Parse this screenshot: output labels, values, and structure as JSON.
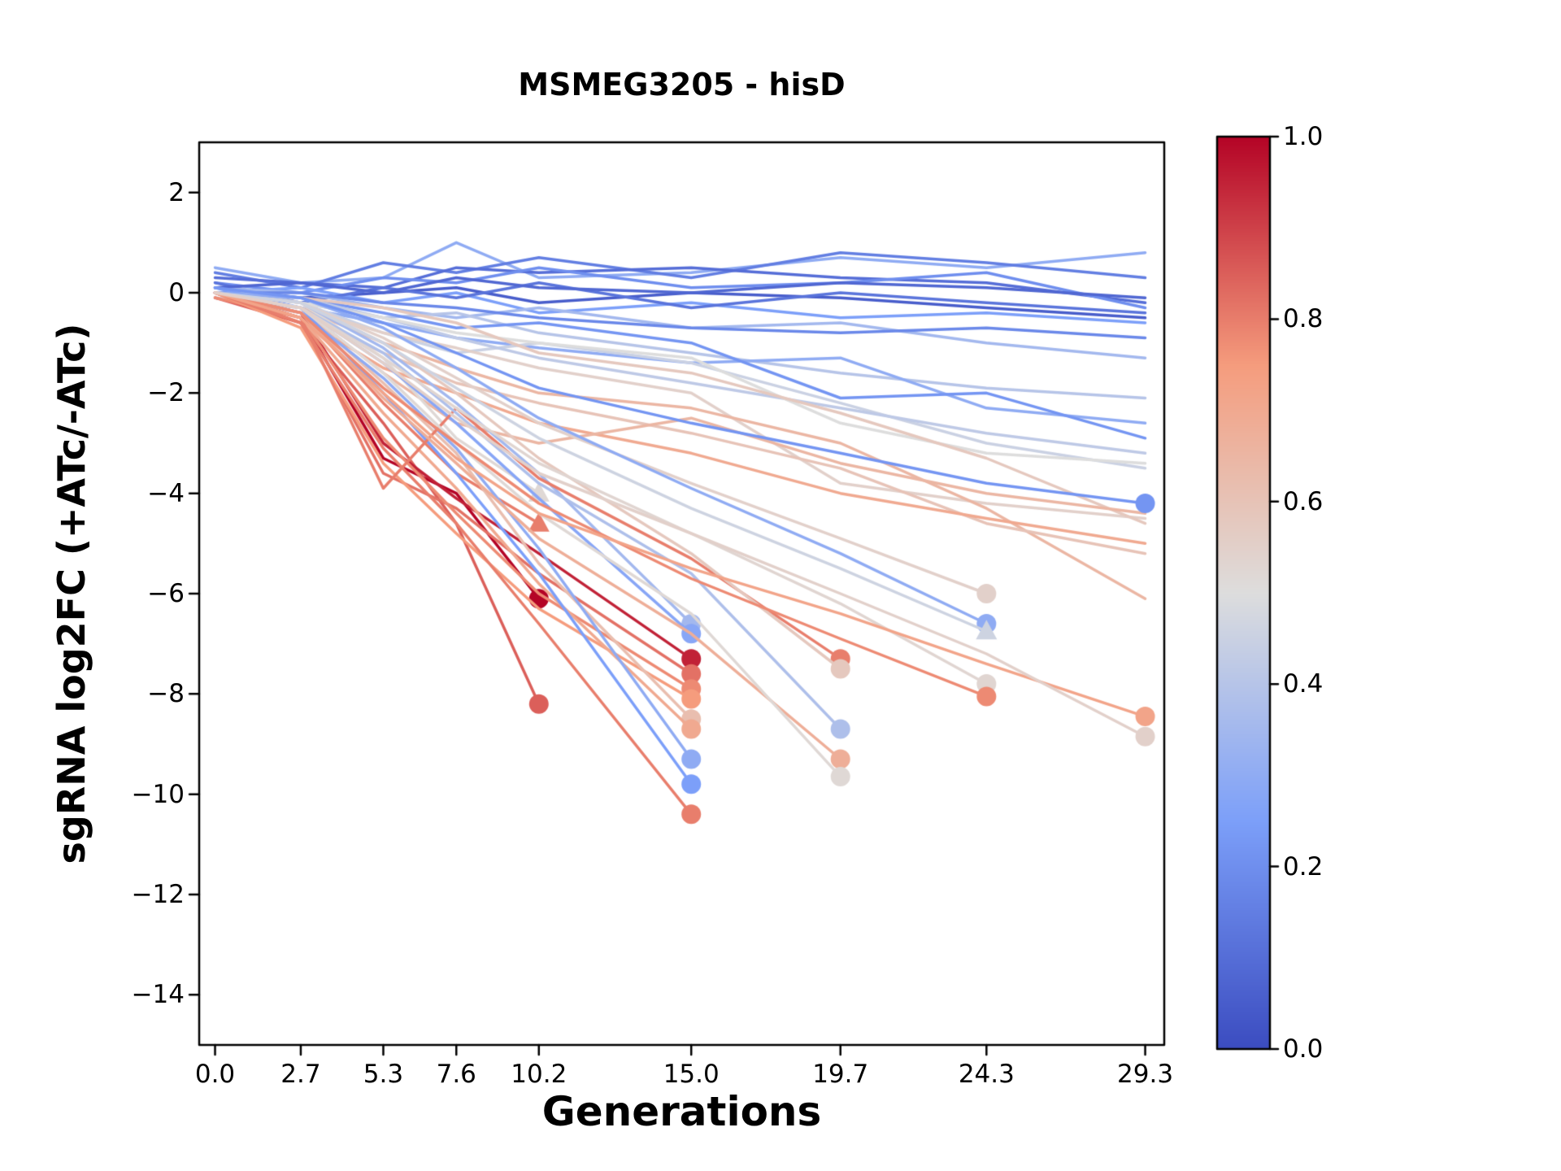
{
  "chart_data": {
    "type": "line",
    "title": "MSMEG3205 - hisD",
    "xlabel": "Generations",
    "ylabel": "sgRNA log2FC (+ATc/-ATc)",
    "x_ticks": [
      0.0,
      2.7,
      5.3,
      7.6,
      10.2,
      15.0,
      19.7,
      24.3,
      29.3
    ],
    "x_tick_labels": [
      "0.0",
      "2.7",
      "5.3",
      "7.6",
      "10.2",
      "15.0",
      "19.7",
      "24.3",
      "29.3"
    ],
    "y_ticks": [
      2,
      0,
      -2,
      -4,
      -6,
      -8,
      -10,
      -12,
      -14
    ],
    "y_tick_labels": [
      "2",
      "0",
      "−2",
      "−4",
      "−6",
      "−8",
      "−10",
      "−12",
      "−14"
    ],
    "xlim": [
      -0.5,
      29.9
    ],
    "ylim": [
      -15,
      3
    ],
    "grid": false,
    "legend": "none",
    "colormap": "coolwarm",
    "colormap_stops": [
      "#3b4cc0",
      "#7c9ff9",
      "#dddddd",
      "#f59c7d",
      "#b40426"
    ],
    "colorbar": {
      "min": 0.0,
      "max": 1.0,
      "tick_values": [
        1.0,
        0.8,
        0.6,
        0.4,
        0.2,
        0.0
      ],
      "tick_labels": [
        "1.0",
        "0.8",
        "0.6",
        "0.4",
        "0.2",
        "0.0"
      ]
    },
    "series": [
      {
        "c": 0.3,
        "y": [
          0.5,
          0.2,
          0.3,
          1.0,
          0.3,
          0.4,
          0.7,
          0.5,
          0.8
        ],
        "m": null
      },
      {
        "c": 0.15,
        "y": [
          0.4,
          0.1,
          0.6,
          0.4,
          0.7,
          0.3,
          0.8,
          0.6,
          0.3
        ],
        "m": null
      },
      {
        "c": 0.1,
        "y": [
          0.3,
          0.2,
          0.1,
          0.5,
          0.4,
          0.5,
          0.3,
          0.2,
          -0.2
        ],
        "m": null
      },
      {
        "c": 0.2,
        "y": [
          0.2,
          0.0,
          0.3,
          0.2,
          0.5,
          0.1,
          0.2,
          0.4,
          -0.3
        ],
        "m": null
      },
      {
        "c": 0.05,
        "y": [
          0.1,
          -0.1,
          0.0,
          0.1,
          -0.2,
          0.0,
          -0.1,
          -0.3,
          -0.5
        ],
        "m": null
      },
      {
        "c": 0.25,
        "y": [
          0.0,
          0.1,
          -0.2,
          0.0,
          -0.4,
          -0.2,
          -0.5,
          -0.4,
          -0.6
        ],
        "m": null
      },
      {
        "c": 0.12,
        "y": [
          0.2,
          -0.2,
          0.1,
          -0.1,
          0.2,
          -0.3,
          0.0,
          -0.2,
          -0.4
        ],
        "m": null
      },
      {
        "c": 0.35,
        "y": [
          0.1,
          0.0,
          -0.3,
          -0.5,
          -0.3,
          -0.7,
          -0.6,
          -1.0,
          -1.3
        ],
        "m": null
      },
      {
        "c": 0.4,
        "y": [
          0.0,
          -0.2,
          -0.5,
          -0.4,
          -0.8,
          -1.2,
          -1.6,
          -1.9,
          -2.1
        ],
        "m": null
      },
      {
        "c": 0.3,
        "y": [
          -0.1,
          -0.3,
          -0.6,
          -0.9,
          -1.1,
          -1.4,
          -1.3,
          -2.3,
          -2.6
        ],
        "m": null
      },
      {
        "c": 0.22,
        "y": [
          0.0,
          -0.1,
          -0.4,
          -0.7,
          -0.6,
          -1.0,
          -2.1,
          -2.0,
          -2.9
        ],
        "m": null
      },
      {
        "c": 0.45,
        "y": [
          0.1,
          -0.2,
          -0.8,
          -1.2,
          -1.0,
          -1.4,
          -2.2,
          -3.0,
          -3.5
        ],
        "m": null
      },
      {
        "c": 0.18,
        "y": [
          0.0,
          0.0,
          -0.2,
          -0.3,
          -0.5,
          -0.7,
          -0.8,
          -0.7,
          -0.9
        ],
        "m": null
      },
      {
        "c": 0.08,
        "y": [
          0.1,
          0.2,
          0.0,
          0.3,
          0.1,
          0.0,
          0.2,
          0.1,
          -0.1
        ],
        "m": null
      },
      {
        "c": 0.42,
        "y": [
          0.0,
          -0.1,
          -0.5,
          -0.9,
          -1.3,
          -1.8,
          -2.3,
          -2.8,
          -3.2
        ],
        "m": null
      },
      {
        "c": 0.5,
        "y": [
          0.0,
          -0.2,
          -0.5,
          -0.8,
          -1.0,
          -1.3,
          -2.6,
          -3.2,
          -3.4
        ],
        "m": null
      },
      {
        "c": 0.55,
        "y": [
          -0.1,
          -0.3,
          -0.8,
          -1.1,
          -1.5,
          -2.0,
          -3.8,
          -4.2,
          -4.5
        ],
        "m": null
      },
      {
        "c": 0.58,
        "y": [
          0.0,
          -0.1,
          -0.3,
          -0.6,
          -1.2,
          -1.6,
          -2.4,
          -3.3,
          -4.6
        ],
        "m": null
      },
      {
        "c": 0.65,
        "y": [
          0.0,
          -0.3,
          -1.0,
          -1.5,
          -2.0,
          -2.3,
          -3.0,
          -4.3,
          -6.1
        ],
        "m": null
      },
      {
        "c": 0.6,
        "y": [
          -0.1,
          -0.4,
          -1.2,
          -1.8,
          -2.2,
          -2.8,
          -3.5,
          -4.6,
          -5.2
        ],
        "m": null
      },
      {
        "c": 0.7,
        "y": [
          0.0,
          -0.5,
          -1.5,
          -2.0,
          -2.6,
          -3.2,
          -4.0,
          -4.5,
          -5.0
        ],
        "m": null
      },
      {
        "c": 0.65,
        "y": [
          0.0,
          -0.3,
          -1.6,
          -2.6,
          -3.0,
          -2.5,
          -3.4,
          -4.0,
          -4.4
        ],
        "m": null
      },
      {
        "c": 1.0,
        "y": [
          0.0,
          -0.5,
          -3.3,
          -4.0,
          -6.1
        ],
        "m": "o"
      },
      {
        "c": 0.85,
        "y": [
          -0.1,
          -0.6,
          -2.6,
          -4.6,
          -8.2
        ],
        "m": "o"
      },
      {
        "c": 0.8,
        "y": [
          0.0,
          -0.4,
          -2.2,
          -3.6,
          -4.6
        ],
        "m": "^"
      },
      {
        "c": 0.52,
        "y": [
          0.0,
          -0.2,
          -1.3,
          -2.9,
          -4.0
        ],
        "m": "^"
      },
      {
        "c": 0.95,
        "y": [
          0.0,
          -0.4,
          -3.0,
          -4.1,
          -5.2,
          -7.3
        ],
        "m": "o"
      },
      {
        "c": 0.82,
        "y": [
          0.0,
          -0.6,
          -3.6,
          -4.3,
          -5.6,
          -7.6
        ],
        "m": "o"
      },
      {
        "c": 0.78,
        "y": [
          -0.1,
          -0.5,
          -2.9,
          -4.4,
          -6.0,
          -7.9
        ],
        "m": "o"
      },
      {
        "c": 0.75,
        "y": [
          0.0,
          -0.7,
          -3.4,
          -4.8,
          -6.3,
          -8.1
        ],
        "m": "o"
      },
      {
        "c": 0.62,
        "y": [
          0.0,
          -0.3,
          -1.8,
          -3.2,
          -5.4,
          -8.5
        ],
        "m": "o"
      },
      {
        "c": 0.7,
        "y": [
          0.0,
          -0.5,
          -2.4,
          -3.9,
          -5.8,
          -8.7
        ],
        "m": "o"
      },
      {
        "c": 0.8,
        "y": [
          0.0,
          -0.6,
          -3.1,
          -4.6,
          -6.6,
          -10.4
        ],
        "m": "o"
      },
      {
        "c": 0.35,
        "y": [
          0.1,
          -0.2,
          -1.1,
          -2.2,
          -3.6,
          -6.6
        ],
        "m": "o"
      },
      {
        "c": 0.28,
        "y": [
          0.0,
          -0.3,
          -1.4,
          -2.6,
          -4.1,
          -6.8
        ],
        "m": "o"
      },
      {
        "c": 0.3,
        "y": [
          0.0,
          -0.4,
          -1.7,
          -3.1,
          -5.1,
          -9.3
        ],
        "m": "o"
      },
      {
        "c": 0.25,
        "y": [
          0.1,
          -0.3,
          -2.0,
          -3.6,
          -5.6,
          -9.8
        ],
        "m": "o"
      },
      {
        "c": 0.8,
        "y": [
          0.0,
          -0.5,
          -3.9,
          -2.3,
          -3.7,
          -5.3,
          -7.3
        ],
        "m": "o"
      },
      {
        "c": 0.58,
        "y": [
          0.0,
          -0.2,
          -1.0,
          -2.0,
          -3.3,
          -5.2,
          -7.5
        ],
        "m": "o"
      },
      {
        "c": 0.38,
        "y": [
          0.0,
          -0.3,
          -1.2,
          -2.4,
          -3.8,
          -5.6,
          -8.7
        ],
        "m": "o"
      },
      {
        "c": 0.68,
        "y": [
          0.0,
          -0.4,
          -2.1,
          -3.4,
          -4.9,
          -6.8,
          -9.3
        ],
        "m": "o"
      },
      {
        "c": 0.52,
        "y": [
          0.0,
          -0.3,
          -1.6,
          -3.0,
          -4.4,
          -6.4,
          -9.65
        ],
        "m": "o"
      },
      {
        "c": 0.55,
        "y": [
          0.0,
          -0.2,
          -0.9,
          -1.7,
          -2.6,
          -3.8,
          -4.9,
          -6.0
        ],
        "m": "o"
      },
      {
        "c": 0.3,
        "y": [
          0.0,
          -0.1,
          -0.7,
          -1.5,
          -2.5,
          -3.9,
          -5.2,
          -6.6
        ],
        "m": "o"
      },
      {
        "c": 0.46,
        "y": [
          0.0,
          -0.2,
          -1.0,
          -1.9,
          -2.9,
          -4.3,
          -5.5,
          -6.75
        ],
        "m": "^"
      },
      {
        "c": 0.53,
        "y": [
          0.0,
          -0.3,
          -1.3,
          -2.3,
          -3.4,
          -4.8,
          -6.2,
          -7.8
        ],
        "m": "o"
      },
      {
        "c": 0.78,
        "y": [
          0.0,
          -0.4,
          -1.9,
          -3.0,
          -4.2,
          -5.7,
          -6.9,
          -8.05
        ],
        "m": "o"
      },
      {
        "c": 0.22,
        "y": [
          0.1,
          -0.1,
          -0.6,
          -1.2,
          -1.9,
          -2.6,
          -3.2,
          -3.8,
          -4.2
        ],
        "m": "o"
      },
      {
        "c": 0.72,
        "y": [
          0.0,
          -0.5,
          -2.0,
          -3.3,
          -4.4,
          -5.5,
          -6.4,
          -7.4,
          -8.45
        ],
        "m": "o"
      },
      {
        "c": 0.55,
        "y": [
          0.0,
          -0.3,
          -1.4,
          -2.5,
          -3.6,
          -4.8,
          -6.0,
          -7.2,
          -8.85
        ],
        "m": "o"
      }
    ]
  }
}
